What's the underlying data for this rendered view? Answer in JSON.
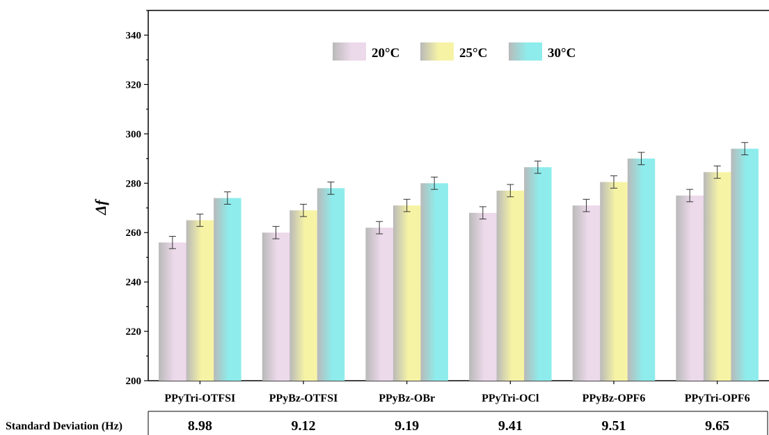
{
  "chart_data": {
    "type": "bar",
    "ylabel": "Δf",
    "xlabel": "",
    "ylim": [
      200,
      350
    ],
    "yticks": [
      200,
      220,
      240,
      260,
      280,
      300,
      320,
      340
    ],
    "categories": [
      "PPyTri-OTFSI",
      "PPyBz-OTFSI",
      "PPyBz-OBr",
      "PPyTri-OCl",
      "PPyBz-OPF6",
      "PPyTri-OPF6"
    ],
    "series": [
      {
        "name": "20°C",
        "values": [
          256,
          260,
          262,
          268,
          271,
          275
        ],
        "errors": [
          2.5,
          2.5,
          2.5,
          2.5,
          2.5,
          2.5
        ],
        "color": "#ecd9ea"
      },
      {
        "name": "25°C",
        "values": [
          265,
          269,
          271,
          277,
          280.5,
          284.5
        ],
        "errors": [
          2.5,
          2.5,
          2.5,
          2.5,
          2.5,
          2.5
        ],
        "color": "#f6f3a5"
      },
      {
        "name": "30°C",
        "values": [
          274,
          278,
          280,
          286.5,
          290,
          294
        ],
        "errors": [
          2.5,
          2.5,
          2.5,
          2.5,
          2.5,
          2.5
        ],
        "color": "#8eecec"
      }
    ],
    "legend_position": "top-center",
    "grid": false
  },
  "table": {
    "row_label": "Standard Deviation (Hz)",
    "values": [
      "8.98",
      "9.12",
      "9.19",
      "9.41",
      "9.51",
      "9.65"
    ]
  }
}
